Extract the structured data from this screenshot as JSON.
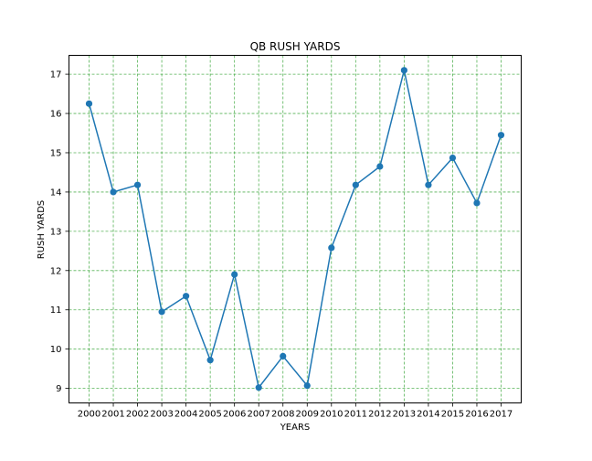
{
  "chart_data": {
    "type": "line",
    "title": "QB RUSH YARDS",
    "xlabel": "YEARS",
    "ylabel": "RUSH YARDS",
    "categories": [
      "2000",
      "2001",
      "2002",
      "2003",
      "2004",
      "2005",
      "2006",
      "2007",
      "2008",
      "2009",
      "2010",
      "2011",
      "2012",
      "2013",
      "2014",
      "2015",
      "2016",
      "2017"
    ],
    "values": [
      16.25,
      14.0,
      14.18,
      10.95,
      11.35,
      9.72,
      11.9,
      9.02,
      9.82,
      9.07,
      12.58,
      14.18,
      14.65,
      17.1,
      14.18,
      14.87,
      13.72,
      15.45
    ],
    "yticks": [
      9,
      10,
      11,
      12,
      13,
      14,
      15,
      16,
      17
    ],
    "ylim": [
      8.63,
      17.48
    ],
    "grid": true,
    "markers": "circle",
    "colors": {
      "line": "#1f77b4",
      "grid": "#2ca02c"
    }
  }
}
